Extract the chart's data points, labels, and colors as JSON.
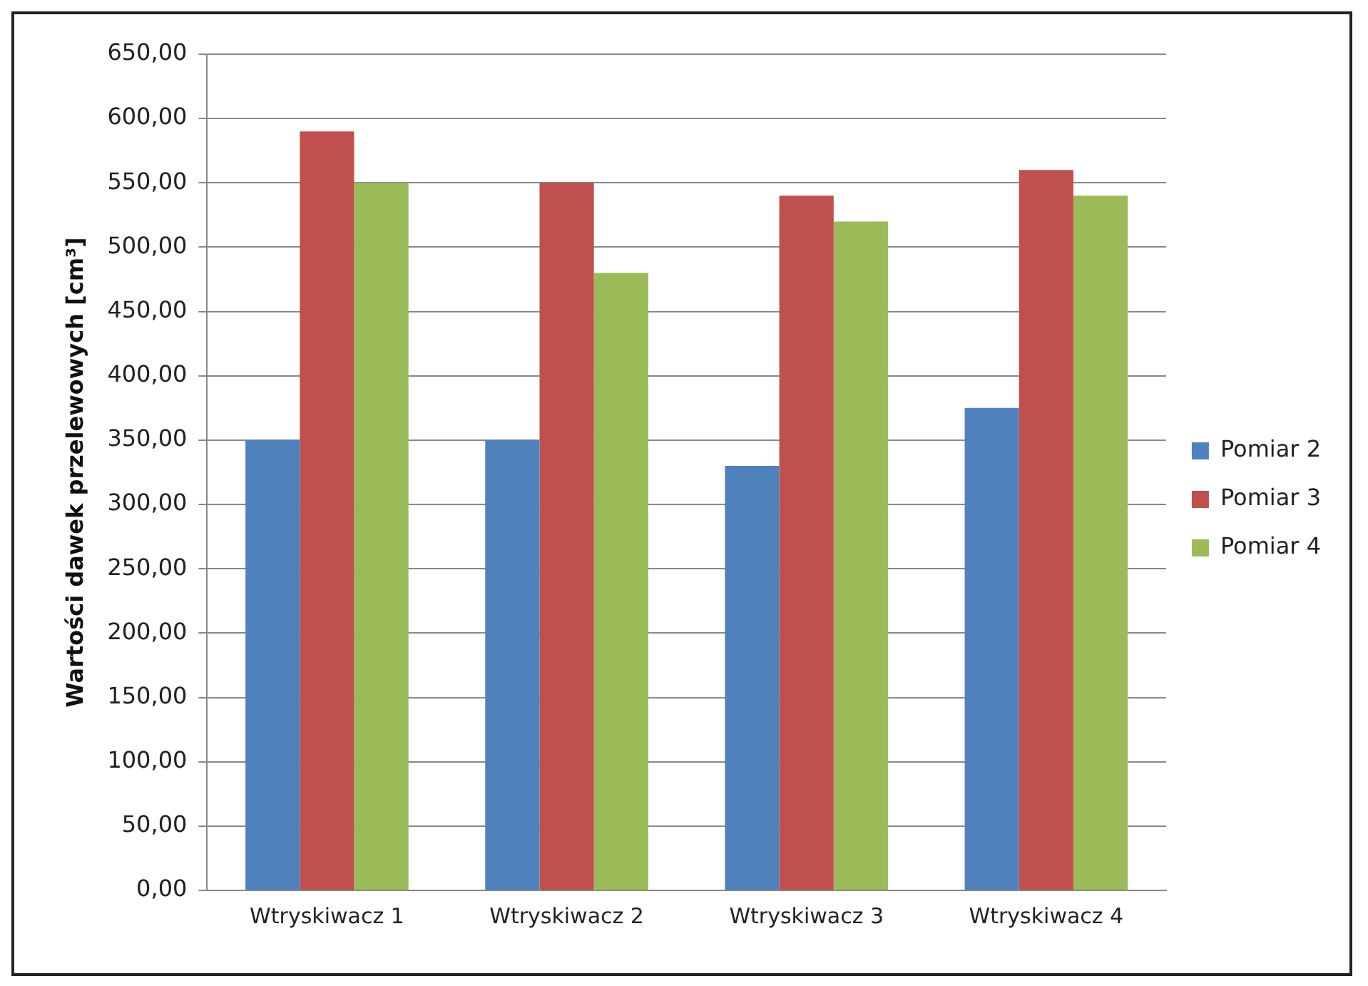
{
  "chart_data": {
    "type": "bar",
    "ylabel": "Wartości dawek przelewowych [cm³]",
    "categories": [
      "Wtryskiwacz 1",
      "Wtryskiwacz 2",
      "Wtryskiwacz 3",
      "Wtryskiwacz 4"
    ],
    "series": [
      {
        "name": "Pomiar 2",
        "color": "#4f81bd",
        "values": [
          350,
          350,
          330,
          375
        ]
      },
      {
        "name": "Pomiar 3",
        "color": "#c0504d",
        "values": [
          590,
          550,
          540,
          560
        ]
      },
      {
        "name": "Pomiar 4",
        "color": "#9bbb59",
        "values": [
          550,
          480,
          520,
          540
        ]
      }
    ],
    "ylim": [
      0,
      650
    ],
    "yticks": [
      {
        "value": 0,
        "label": "0,00"
      },
      {
        "value": 50,
        "label": "50,00"
      },
      {
        "value": 100,
        "label": "100,00"
      },
      {
        "value": 150,
        "label": "150,00"
      },
      {
        "value": 200,
        "label": "200,00"
      },
      {
        "value": 250,
        "label": "250,00"
      },
      {
        "value": 300,
        "label": "300,00"
      },
      {
        "value": 350,
        "label": "350,00"
      },
      {
        "value": 400,
        "label": "400,00"
      },
      {
        "value": 450,
        "label": "450,00"
      },
      {
        "value": 500,
        "label": "500,00"
      },
      {
        "value": 550,
        "label": "550,00"
      },
      {
        "value": 600,
        "label": "600,00"
      },
      {
        "value": 650,
        "label": "650,00"
      }
    ],
    "grid": "y",
    "legend": "right"
  }
}
